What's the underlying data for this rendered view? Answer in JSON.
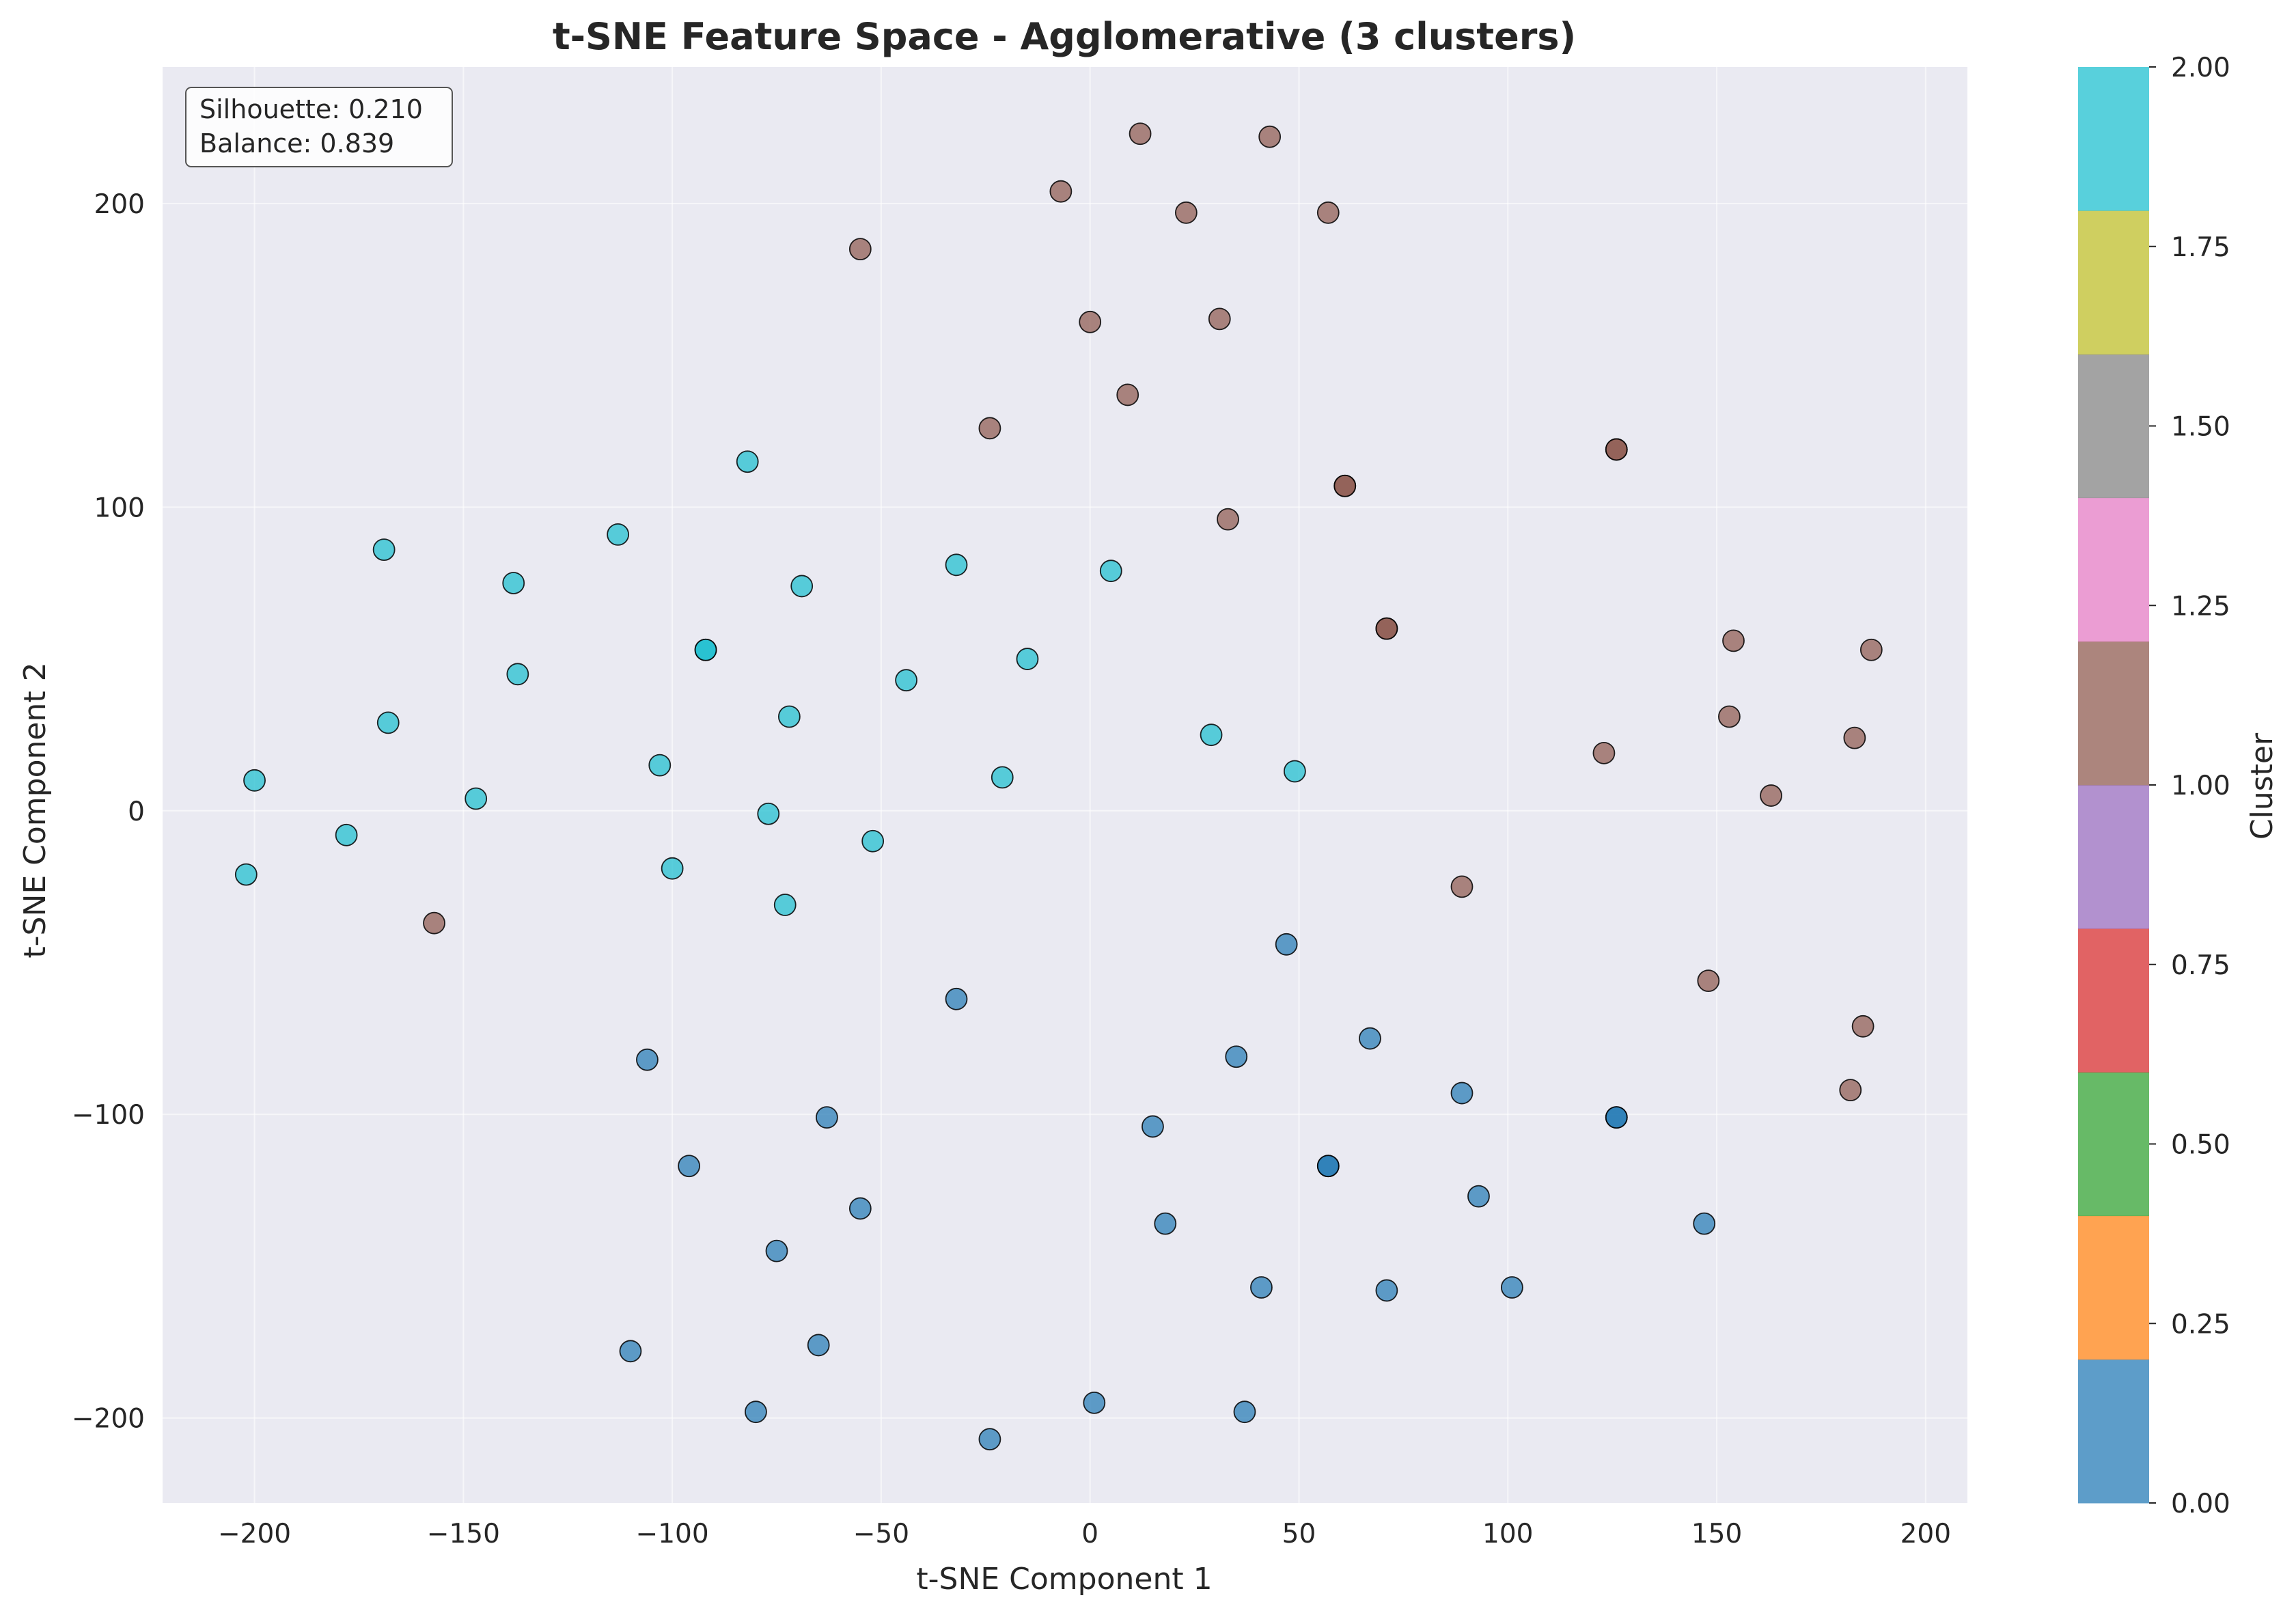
{
  "chart_data": {
    "type": "scatter",
    "title": "t-SNE Feature Space - Agglomerative (3 clusters)",
    "xlabel": "t-SNE Component 1",
    "ylabel": "t-SNE Component 2",
    "xlim": [
      -222,
      210
    ],
    "ylim": [
      -228,
      245
    ],
    "xticks": [
      -200,
      -150,
      -100,
      -50,
      0,
      50,
      100,
      150,
      200
    ],
    "yticks": [
      -200,
      -100,
      0,
      100,
      200
    ],
    "xtick_labels": [
      "−200",
      "−150",
      "−100",
      "−50",
      "0",
      "50",
      "100",
      "150",
      "200"
    ],
    "ytick_labels": [
      "−200",
      "−100",
      "0",
      "100",
      "200"
    ],
    "grid": true,
    "annotation_lines": [
      "Silhouette: 0.210",
      "Balance: 0.839"
    ],
    "colorbar": {
      "label": "Cluster",
      "range": [
        0,
        2
      ],
      "ticks": [
        "0.00",
        "0.25",
        "0.50",
        "0.75",
        "1.00",
        "1.25",
        "1.50",
        "1.75",
        "2.00"
      ],
      "colors": [
        "#1f77b4",
        "#ff7f0e",
        "#2ca02c",
        "#d62728",
        "#9467bd",
        "#8c564b",
        "#e377c2",
        "#7f7f7f",
        "#bcbd22",
        "#17becf"
      ]
    },
    "cluster_colors": {
      "0": "#1f77b4",
      "1": "#8c564b",
      "2": "#17becf"
    },
    "series": [
      {
        "cluster": 2,
        "points": [
          [
            -82,
            115
          ],
          [
            -169,
            86
          ],
          [
            -113,
            91
          ],
          [
            -138,
            75
          ],
          [
            -69,
            74
          ],
          [
            -32,
            81
          ],
          [
            5,
            79
          ],
          [
            -92,
            53
          ],
          [
            -92,
            53
          ],
          [
            -137,
            45
          ],
          [
            -44,
            43
          ],
          [
            -15,
            50
          ],
          [
            -168,
            29
          ],
          [
            -72,
            31
          ],
          [
            -103,
            15
          ],
          [
            -21,
            11
          ],
          [
            29,
            25
          ],
          [
            49,
            13
          ],
          [
            -200,
            10
          ],
          [
            -147,
            4
          ],
          [
            -77,
            -1
          ],
          [
            -178,
            -8
          ],
          [
            -52,
            -10
          ],
          [
            -202,
            -21
          ],
          [
            -100,
            -19
          ],
          [
            -73,
            -31
          ]
        ]
      },
      {
        "cluster": 1,
        "points": [
          [
            12,
            223
          ],
          [
            43,
            222
          ],
          [
            -7,
            204
          ],
          [
            23,
            197
          ],
          [
            57,
            197
          ],
          [
            -55,
            185
          ],
          [
            0,
            161
          ],
          [
            31,
            162
          ],
          [
            9,
            137
          ],
          [
            -24,
            126
          ],
          [
            126,
            119
          ],
          [
            126,
            119
          ],
          [
            61,
            107
          ],
          [
            61,
            107
          ],
          [
            33,
            96
          ],
          [
            71,
            60
          ],
          [
            71,
            60
          ],
          [
            154,
            56
          ],
          [
            187,
            53
          ],
          [
            153,
            31
          ],
          [
            183,
            24
          ],
          [
            123,
            19
          ],
          [
            163,
            5
          ],
          [
            -157,
            -37
          ],
          [
            89,
            -25
          ],
          [
            148,
            -56
          ],
          [
            185,
            -71
          ],
          [
            182,
            -92
          ]
        ]
      },
      {
        "cluster": 0,
        "points": [
          [
            47,
            -44
          ],
          [
            -32,
            -62
          ],
          [
            -106,
            -82
          ],
          [
            35,
            -81
          ],
          [
            67,
            -75
          ],
          [
            89,
            -93
          ],
          [
            -63,
            -101
          ],
          [
            15,
            -104
          ],
          [
            126,
            -101
          ],
          [
            126,
            -101
          ],
          [
            -96,
            -117
          ],
          [
            57,
            -117
          ],
          [
            57,
            -117
          ],
          [
            -55,
            -131
          ],
          [
            93,
            -127
          ],
          [
            18,
            -136
          ],
          [
            147,
            -136
          ],
          [
            -75,
            -145
          ],
          [
            41,
            -157
          ],
          [
            71,
            -158
          ],
          [
            101,
            -157
          ],
          [
            -65,
            -176
          ],
          [
            -110,
            -178
          ],
          [
            -80,
            -198
          ],
          [
            1,
            -195
          ],
          [
            37,
            -198
          ],
          [
            -24,
            -207
          ]
        ]
      }
    ]
  }
}
